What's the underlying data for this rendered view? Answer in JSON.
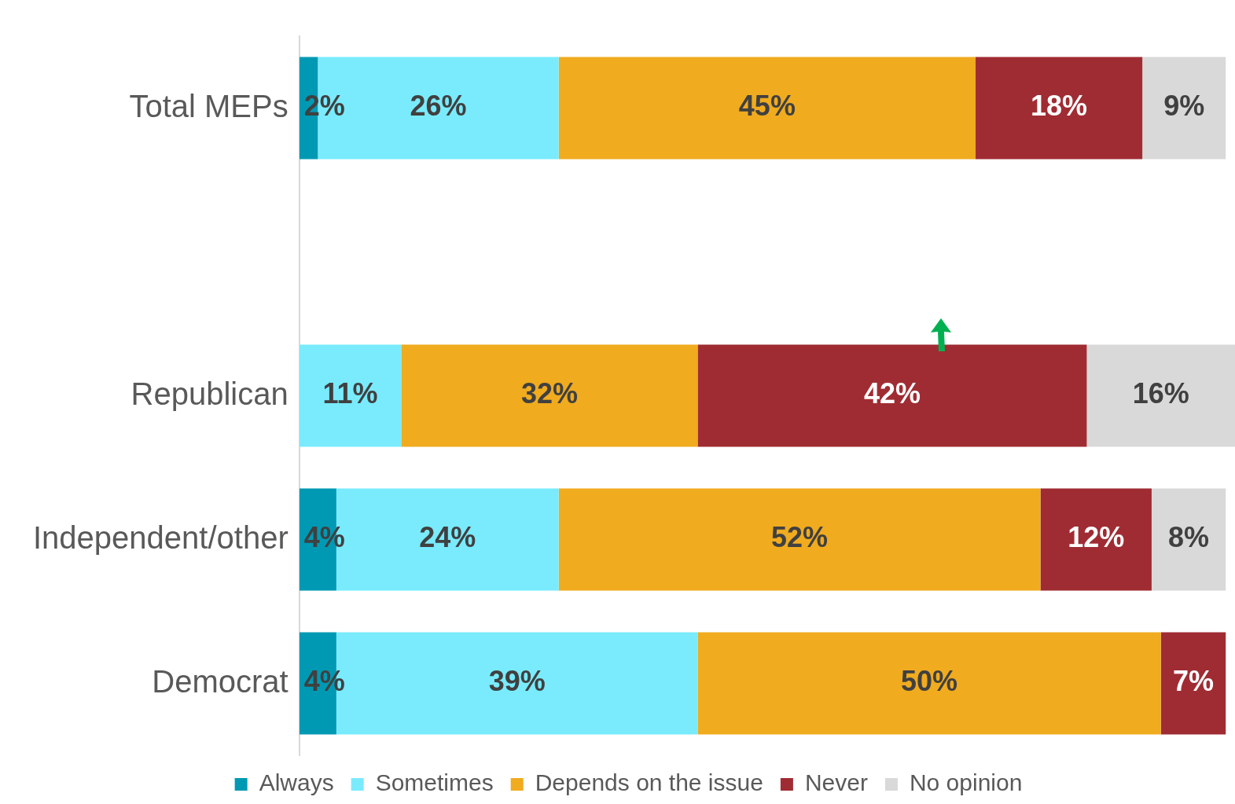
{
  "chart_data": {
    "type": "bar",
    "orientation": "horizontal",
    "stacked": true,
    "categories": [
      "Total MEPs",
      null,
      "Republican",
      "Independent/other",
      "Democrat"
    ],
    "series": [
      {
        "name": "Always",
        "color": "#0099b4",
        "values": [
          2,
          null,
          null,
          4,
          4
        ],
        "value_labels": [
          "2%",
          null,
          null,
          "4%",
          "4%"
        ]
      },
      {
        "name": "Sometimes",
        "color": "#79ebfd",
        "values": [
          26,
          null,
          11,
          24,
          39
        ],
        "value_labels": [
          "26%",
          null,
          "11%",
          "24%",
          "39%"
        ]
      },
      {
        "name": "Depends on the issue",
        "color": "#f0ab1f",
        "values": [
          45,
          null,
          32,
          52,
          50
        ],
        "value_labels": [
          "45%",
          null,
          "32%",
          "52%",
          "50%"
        ]
      },
      {
        "name": "Never",
        "color": "#a02c33",
        "values": [
          18,
          null,
          42,
          12,
          7
        ],
        "value_labels": [
          "18%",
          null,
          "42%",
          "12%",
          "7%"
        ]
      },
      {
        "name": "No opinion",
        "color": "#d9d9d9",
        "values": [
          9,
          null,
          16,
          8,
          null
        ],
        "value_labels": [
          "9%",
          null,
          "16%",
          "8%",
          null
        ]
      }
    ],
    "xlim": [
      0,
      101
    ],
    "tick_labels": "y",
    "grid": false,
    "legend": "bottom"
  }
}
